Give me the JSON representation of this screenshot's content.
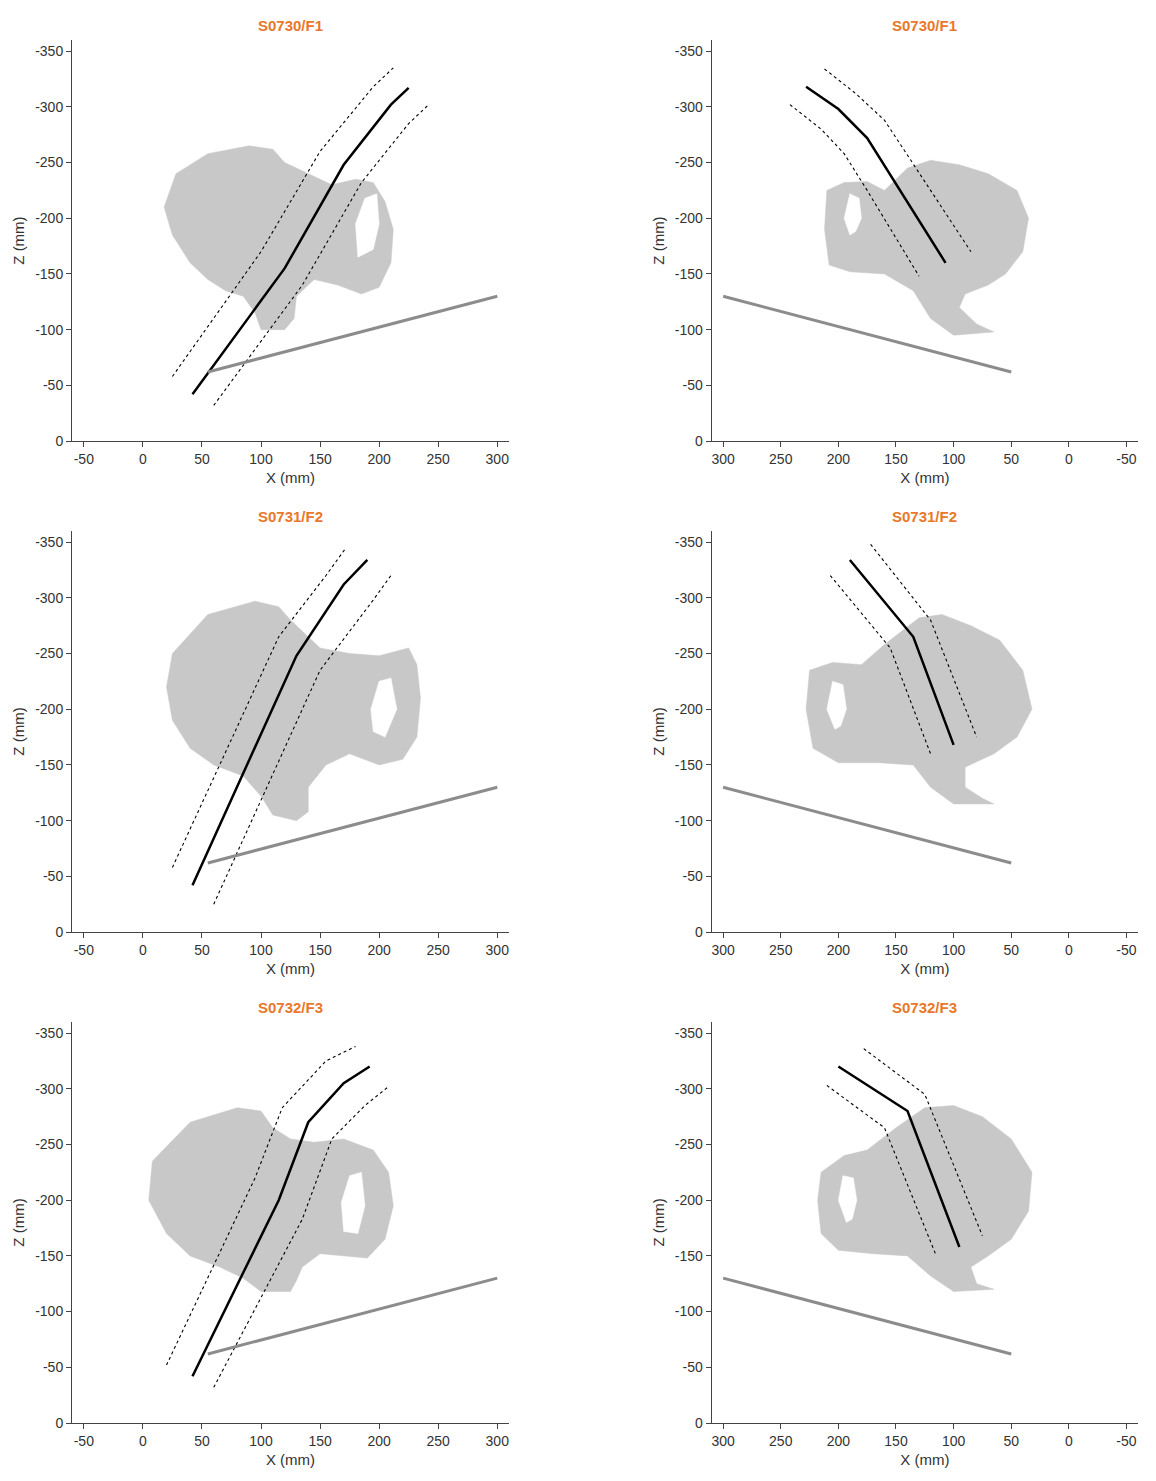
{
  "chart_data": [
    {
      "type": "line",
      "title": "S0730/F1",
      "xlabel": "X (mm)",
      "ylabel": "Z (mm)",
      "xlim": [
        -60,
        310
      ],
      "xticks": [
        -50,
        0,
        50,
        100,
        150,
        200,
        250,
        300
      ],
      "ylim": [
        0,
        -360
      ],
      "yticks": [
        0,
        -50,
        -100,
        -150,
        -200,
        -250,
        -300,
        -350
      ],
      "series": [
        {
          "type": "area",
          "color": "#c8c8c8",
          "x": [
            28,
            55,
            90,
            110,
            120,
            140,
            160,
            180,
            195,
            205,
            212,
            210,
            200,
            185,
            165,
            145,
            130,
            128,
            120,
            100,
            95,
            85,
            70,
            55,
            40,
            25,
            18,
            28
          ],
          "values": [
            -240,
            -258,
            -265,
            -262,
            -250,
            -240,
            -230,
            -235,
            -232,
            -215,
            -190,
            -160,
            -138,
            -132,
            -140,
            -145,
            -130,
            -110,
            -100,
            -100,
            -115,
            -130,
            -135,
            -145,
            -160,
            -185,
            -210,
            -240
          ]
        },
        {
          "type": "area",
          "color": "#ffffff",
          "x": [
            182,
            195,
            200,
            198,
            188,
            180,
            182
          ],
          "values": [
            -165,
            -172,
            -195,
            -222,
            -218,
            -195,
            -165
          ]
        },
        {
          "type": "line",
          "color": "#000000",
          "line_style": "solid",
          "x": [
            42,
            120,
            170,
            210,
            225
          ],
          "values": [
            -42,
            -155,
            -248,
            -302,
            -317
          ]
        },
        {
          "type": "line",
          "color": "#000000",
          "line_style": "dotted",
          "x": [
            25,
            100,
            150,
            195,
            212
          ],
          "values": [
            -58,
            -170,
            -260,
            -318,
            -335
          ]
        },
        {
          "type": "line",
          "color": "#000000",
          "line_style": "dotted",
          "x": [
            60,
            135,
            185,
            225,
            242
          ],
          "values": [
            -32,
            -140,
            -232,
            -285,
            -302
          ]
        },
        {
          "type": "line",
          "color": "#8c8c8c",
          "line_style": "solid",
          "x": [
            55,
            300
          ],
          "values": [
            -62,
            -130
          ]
        }
      ]
    },
    {
      "type": "line",
      "title": "S0730/F1",
      "xlabel": "X (mm)",
      "ylabel": "Z (mm)",
      "xlim": [
        310,
        -60
      ],
      "xticks": [
        300,
        250,
        200,
        150,
        100,
        50,
        0,
        -50
      ],
      "ylim": [
        0,
        -360
      ],
      "yticks": [
        0,
        -50,
        -100,
        -150,
        -200,
        -250,
        -300,
        -350
      ],
      "series": [
        {
          "type": "area",
          "color": "#c8c8c8",
          "x": [
            210,
            195,
            175,
            160,
            140,
            120,
            95,
            70,
            45,
            35,
            40,
            55,
            70,
            90,
            95,
            80,
            65,
            100,
            120,
            135,
            160,
            190,
            208,
            212,
            210
          ],
          "values": [
            -225,
            -232,
            -233,
            -225,
            -245,
            -252,
            -248,
            -240,
            -225,
            -200,
            -170,
            -150,
            -140,
            -132,
            -120,
            -105,
            -98,
            -95,
            -110,
            -135,
            -150,
            -152,
            -158,
            -190,
            -225
          ]
        },
        {
          "type": "area",
          "color": "#ffffff",
          "x": [
            190,
            195,
            190,
            182,
            180,
            185,
            190
          ],
          "values": [
            -185,
            -200,
            -222,
            -218,
            -200,
            -188,
            -185
          ]
        },
        {
          "type": "line",
          "color": "#000000",
          "line_style": "solid",
          "x": [
            228,
            200,
            175,
            107
          ],
          "values": [
            -318,
            -298,
            -272,
            -160
          ]
        },
        {
          "type": "line",
          "color": "#000000",
          "line_style": "dotted",
          "x": [
            242,
            215,
            195,
            175,
            130
          ],
          "values": [
            -302,
            -280,
            -258,
            -225,
            -148
          ]
        },
        {
          "type": "line",
          "color": "#000000",
          "line_style": "dotted",
          "x": [
            212,
            185,
            160,
            85
          ],
          "values": [
            -334,
            -312,
            -288,
            -170
          ]
        },
        {
          "type": "line",
          "color": "#8c8c8c",
          "line_style": "solid",
          "x": [
            300,
            50
          ],
          "values": [
            -130,
            -62
          ]
        }
      ]
    },
    {
      "type": "line",
      "title": "S0731/F2",
      "xlabel": "X (mm)",
      "ylabel": "Z (mm)",
      "xlim": [
        -60,
        310
      ],
      "xticks": [
        -50,
        0,
        50,
        100,
        150,
        200,
        250,
        300
      ],
      "ylim": [
        0,
        -360
      ],
      "yticks": [
        0,
        -50,
        -100,
        -150,
        -200,
        -250,
        -300,
        -350
      ],
      "series": [
        {
          "type": "area",
          "color": "#c8c8c8",
          "x": [
            25,
            55,
            95,
            115,
            125,
            150,
            175,
            200,
            225,
            232,
            235,
            232,
            220,
            200,
            175,
            155,
            140,
            140,
            130,
            110,
            100,
            85,
            60,
            40,
            25,
            20,
            25
          ],
          "values": [
            -250,
            -285,
            -297,
            -292,
            -280,
            -255,
            -250,
            -248,
            -255,
            -240,
            -210,
            -175,
            -155,
            -150,
            -160,
            -150,
            -130,
            -108,
            -100,
            -105,
            -122,
            -140,
            -150,
            -165,
            -190,
            -220,
            -250
          ]
        },
        {
          "type": "area",
          "color": "#ffffff",
          "x": [
            195,
            205,
            215,
            210,
            200,
            193,
            195
          ],
          "values": [
            -180,
            -175,
            -200,
            -228,
            -225,
            -200,
            -180
          ]
        },
        {
          "type": "line",
          "color": "#000000",
          "line_style": "solid",
          "x": [
            42,
            130,
            170,
            190
          ],
          "values": [
            -42,
            -248,
            -312,
            -334
          ]
        },
        {
          "type": "line",
          "color": "#000000",
          "line_style": "dotted",
          "x": [
            25,
            115,
            155,
            172
          ],
          "values": [
            -58,
            -265,
            -320,
            -345
          ]
        },
        {
          "type": "line",
          "color": "#000000",
          "line_style": "dotted",
          "x": [
            60,
            150,
            195,
            210
          ],
          "values": [
            -25,
            -235,
            -298,
            -320
          ]
        },
        {
          "type": "line",
          "color": "#8c8c8c",
          "line_style": "solid",
          "x": [
            55,
            300
          ],
          "values": [
            -62,
            -130
          ]
        }
      ]
    },
    {
      "type": "line",
      "title": "S0731/F2",
      "xlabel": "X (mm)",
      "ylabel": "Z (mm)",
      "xlim": [
        310,
        -60
      ],
      "xticks": [
        300,
        250,
        200,
        150,
        100,
        50,
        0,
        -50
      ],
      "ylim": [
        0,
        -360
      ],
      "yticks": [
        0,
        -50,
        -100,
        -150,
        -200,
        -250,
        -300,
        -350
      ],
      "series": [
        {
          "type": "area",
          "color": "#c8c8c8",
          "x": [
            225,
            205,
            180,
            160,
            130,
            110,
            85,
            60,
            40,
            32,
            45,
            65,
            90,
            90,
            75,
            65,
            100,
            120,
            135,
            165,
            200,
            222,
            228,
            225
          ],
          "values": [
            -235,
            -242,
            -240,
            -258,
            -282,
            -285,
            -275,
            -262,
            -235,
            -200,
            -175,
            -160,
            -148,
            -130,
            -120,
            -115,
            -115,
            -130,
            -150,
            -152,
            -152,
            -165,
            -200,
            -235
          ]
        },
        {
          "type": "area",
          "color": "#ffffff",
          "x": [
            203,
            210,
            205,
            196,
            193,
            198,
            203
          ],
          "values": [
            -182,
            -200,
            -225,
            -222,
            -200,
            -185,
            -182
          ]
        },
        {
          "type": "line",
          "color": "#000000",
          "line_style": "solid",
          "x": [
            190,
            135,
            100
          ],
          "values": [
            -334,
            -265,
            -168
          ]
        },
        {
          "type": "line",
          "color": "#000000",
          "line_style": "dotted",
          "x": [
            207,
            155,
            120
          ],
          "values": [
            -320,
            -255,
            -160
          ]
        },
        {
          "type": "line",
          "color": "#000000",
          "line_style": "dotted",
          "x": [
            172,
            120,
            80
          ],
          "values": [
            -348,
            -280,
            -175
          ]
        },
        {
          "type": "line",
          "color": "#8c8c8c",
          "line_style": "solid",
          "x": [
            300,
            50
          ],
          "values": [
            -130,
            -62
          ]
        }
      ]
    },
    {
      "type": "line",
      "title": "S0732/F3",
      "xlabel": "X (mm)",
      "ylabel": "Z (mm)",
      "xlim": [
        -60,
        310
      ],
      "xticks": [
        -50,
        0,
        50,
        100,
        150,
        200,
        250,
        300
      ],
      "ylim": [
        0,
        -360
      ],
      "yticks": [
        0,
        -50,
        -100,
        -150,
        -200,
        -250,
        -300,
        -350
      ],
      "series": [
        {
          "type": "area",
          "color": "#c8c8c8",
          "x": [
            8,
            40,
            80,
            100,
            110,
            125,
            145,
            170,
            195,
            208,
            212,
            205,
            190,
            170,
            150,
            135,
            130,
            125,
            100,
            85,
            65,
            40,
            20,
            5,
            8
          ],
          "values": [
            -235,
            -270,
            -283,
            -280,
            -265,
            -255,
            -252,
            -255,
            -245,
            -225,
            -195,
            -165,
            -148,
            -150,
            -152,
            -140,
            -128,
            -118,
            -118,
            -130,
            -140,
            -150,
            -170,
            -200,
            -235
          ]
        },
        {
          "type": "area",
          "color": "#ffffff",
          "x": [
            170,
            182,
            188,
            185,
            175,
            168,
            170
          ],
          "values": [
            -172,
            -170,
            -195,
            -225,
            -222,
            -198,
            -172
          ]
        },
        {
          "type": "line",
          "color": "#000000",
          "line_style": "solid",
          "x": [
            42,
            115,
            140,
            170,
            192
          ],
          "values": [
            -42,
            -200,
            -270,
            -305,
            -320
          ]
        },
        {
          "type": "line",
          "color": "#000000",
          "line_style": "dotted",
          "x": [
            20,
            95,
            118,
            155,
            180
          ],
          "values": [
            -52,
            -220,
            -283,
            -325,
            -338
          ]
        },
        {
          "type": "line",
          "color": "#000000",
          "line_style": "dotted",
          "x": [
            60,
            135,
            160,
            188,
            208
          ],
          "values": [
            -32,
            -183,
            -255,
            -285,
            -302
          ]
        },
        {
          "type": "line",
          "color": "#8c8c8c",
          "line_style": "solid",
          "x": [
            55,
            300
          ],
          "values": [
            -62,
            -130
          ]
        }
      ]
    },
    {
      "type": "line",
      "title": "S0732/F3",
      "xlabel": "X (mm)",
      "ylabel": "Z (mm)",
      "xlim": [
        310,
        -60
      ],
      "xticks": [
        300,
        250,
        200,
        150,
        100,
        50,
        0,
        -50
      ],
      "ylim": [
        0,
        -360
      ],
      "yticks": [
        0,
        -50,
        -100,
        -150,
        -200,
        -250,
        -300,
        -350
      ],
      "series": [
        {
          "type": "area",
          "color": "#c8c8c8",
          "x": [
            215,
            195,
            175,
            150,
            125,
            100,
            75,
            50,
            32,
            35,
            50,
            70,
            85,
            80,
            65,
            100,
            120,
            140,
            170,
            200,
            215,
            218,
            215
          ],
          "values": [
            -225,
            -240,
            -245,
            -265,
            -283,
            -285,
            -275,
            -255,
            -225,
            -190,
            -165,
            -150,
            -140,
            -125,
            -120,
            -118,
            -132,
            -150,
            -152,
            -155,
            -170,
            -200,
            -225
          ]
        },
        {
          "type": "area",
          "color": "#ffffff",
          "x": [
            193,
            200,
            196,
            187,
            184,
            188,
            193
          ],
          "values": [
            -180,
            -200,
            -222,
            -220,
            -200,
            -183,
            -180
          ]
        },
        {
          "type": "line",
          "color": "#000000",
          "line_style": "solid",
          "x": [
            200,
            140,
            95
          ],
          "values": [
            -320,
            -280,
            -158
          ]
        },
        {
          "type": "line",
          "color": "#000000",
          "line_style": "dotted",
          "x": [
            210,
            160,
            115
          ],
          "values": [
            -303,
            -265,
            -150
          ]
        },
        {
          "type": "line",
          "color": "#000000",
          "line_style": "dotted",
          "x": [
            178,
            125,
            75
          ],
          "values": [
            -336,
            -295,
            -168
          ]
        },
        {
          "type": "line",
          "color": "#8c8c8c",
          "line_style": "solid",
          "x": [
            300,
            50
          ],
          "values": [
            -130,
            -62
          ]
        }
      ]
    }
  ]
}
